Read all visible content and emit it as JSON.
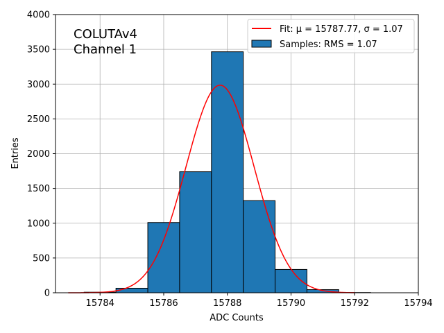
{
  "chart_data": {
    "type": "bar",
    "title": "",
    "annotation": [
      "COLUTAv4",
      "Channel 1"
    ],
    "xlabel": "ADC Counts",
    "ylabel": "Entries",
    "xlim": [
      15782.6,
      15794
    ],
    "ylim": [
      0,
      4000
    ],
    "xticks": [
      15784,
      15786,
      15788,
      15790,
      15792,
      15794
    ],
    "yticks": [
      0,
      500,
      1000,
      1500,
      2000,
      2500,
      3000,
      3500,
      4000
    ],
    "grid": true,
    "legend_position": "top-right",
    "bar_color": "#1f77b4",
    "fit_color": "#ff0000",
    "bins": [
      {
        "left": 15783.5,
        "right": 15784.5,
        "count": 8
      },
      {
        "left": 15784.5,
        "right": 15785.5,
        "count": 65
      },
      {
        "left": 15785.5,
        "right": 15786.5,
        "count": 1010
      },
      {
        "left": 15786.5,
        "right": 15787.5,
        "count": 1740
      },
      {
        "left": 15787.5,
        "right": 15788.5,
        "count": 3465
      },
      {
        "left": 15788.5,
        "right": 15789.5,
        "count": 1325
      },
      {
        "left": 15789.5,
        "right": 15790.5,
        "count": 335
      },
      {
        "left": 15790.5,
        "right": 15791.5,
        "count": 45
      },
      {
        "left": 15791.5,
        "right": 15792.5,
        "count": 3
      }
    ],
    "series": [
      {
        "name": "Fit: μ = 15787.77, σ = 1.07",
        "type": "line",
        "function": "gaussian",
        "mu": 15787.77,
        "sigma": 1.07,
        "amplitude": 2985,
        "x_range": [
          15783,
          15792
        ]
      },
      {
        "name": "Samples: RMS = 1.07",
        "type": "bar"
      }
    ]
  }
}
